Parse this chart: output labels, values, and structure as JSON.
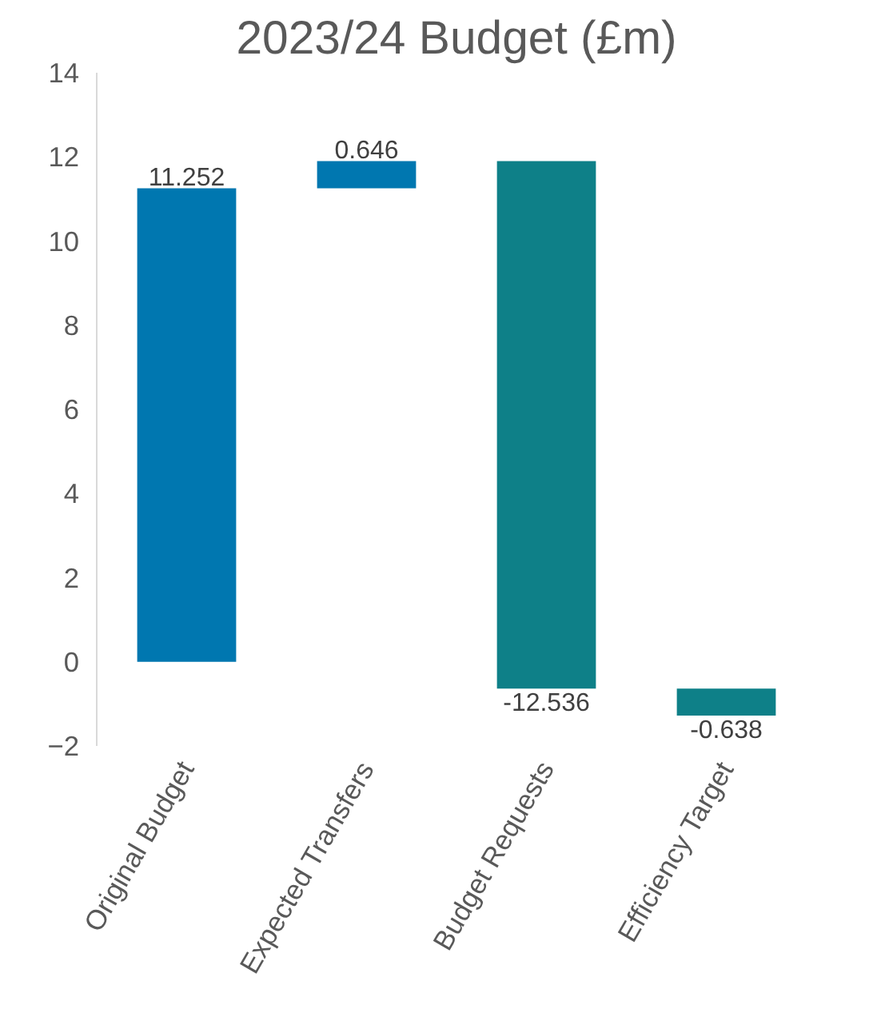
{
  "chart_data": {
    "type": "bar",
    "title": "2023/24 Budget (£m)",
    "categories": [
      "Original Budget",
      "Expected Transfers",
      "Budget Requests",
      "Efficiency Target"
    ],
    "values": [
      11.252,
      0.646,
      -12.536,
      -0.638
    ],
    "base": [
      0,
      11.252,
      11.898,
      -0.638
    ],
    "colors": [
      "#0077b0",
      "#0077b0",
      "#0e8088",
      "#0e8088"
    ],
    "ylim": [
      -2,
      14
    ],
    "yticks": [
      -2,
      0,
      2,
      4,
      6,
      8,
      10,
      12,
      14
    ],
    "data_labels": true,
    "grid": false
  }
}
